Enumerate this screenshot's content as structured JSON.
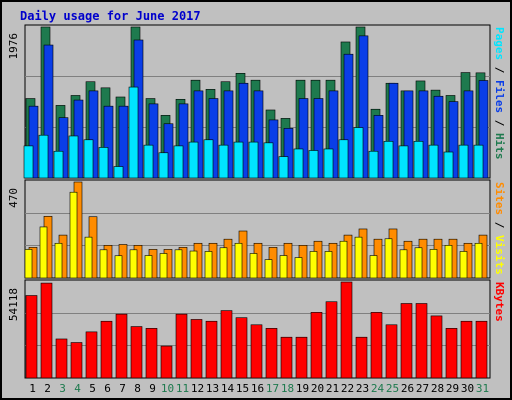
{
  "title": "Daily usage for June 2017",
  "colors": {
    "background": "#c0c0c0",
    "hits": "#1e7a4e",
    "files": "#0a3ee8",
    "pages": "#00e5ff",
    "visits": "#ffff00",
    "sites": "#ff8c00",
    "kbytes": "#ff0000",
    "title": "#0000cc",
    "weekend_label": "#1e7a4e",
    "weekday_label": "#000000"
  },
  "chart_data": [
    {
      "type": "bar",
      "panel": "hits-files-pages",
      "categories": [
        "1",
        "2",
        "3",
        "4",
        "5",
        "6",
        "7",
        "8",
        "9",
        "10",
        "11",
        "12",
        "13",
        "14",
        "15",
        "16",
        "17",
        "18",
        "19",
        "20",
        "21",
        "22",
        "23",
        "24",
        "25",
        "26",
        "27",
        "28",
        "29",
        "30",
        "31"
      ],
      "weekend_days": [
        "3",
        "4",
        "10",
        "11",
        "17",
        "18",
        "24",
        "25",
        "31"
      ],
      "ymax": 1976,
      "ymax_label": "1976",
      "axis_legend": [
        "Pages",
        "/",
        "Files",
        "/",
        "Hits"
      ],
      "series": [
        {
          "name": "Hits",
          "values": [
            1040,
            1976,
            950,
            1080,
            1260,
            1180,
            1060,
            1976,
            1040,
            820,
            1030,
            1280,
            1160,
            1260,
            1370,
            1280,
            890,
            780,
            1280,
            1280,
            1280,
            1780,
            1976,
            900,
            1240,
            1140,
            1270,
            1150,
            1080,
            1380,
            1376
          ]
        },
        {
          "name": "Files",
          "values": [
            940,
            1740,
            790,
            1020,
            1140,
            940,
            940,
            1806,
            970,
            710,
            970,
            1140,
            1040,
            1140,
            1240,
            1140,
            760,
            650,
            1040,
            1040,
            1140,
            1620,
            1860,
            820,
            1240,
            1140,
            1140,
            1070,
            1000,
            1140,
            1276
          ]
        },
        {
          "name": "Pages",
          "values": [
            420,
            560,
            350,
            550,
            500,
            400,
            150,
            1190,
            430,
            330,
            420,
            470,
            500,
            430,
            470,
            470,
            460,
            280,
            380,
            360,
            380,
            500,
            660,
            350,
            480,
            420,
            480,
            430,
            340,
            430,
            430
          ]
        }
      ]
    },
    {
      "type": "bar",
      "panel": "sites-visits",
      "categories": [
        "1",
        "2",
        "3",
        "4",
        "5",
        "6",
        "7",
        "8",
        "9",
        "10",
        "11",
        "12",
        "13",
        "14",
        "15",
        "16",
        "17",
        "18",
        "19",
        "20",
        "21",
        "22",
        "23",
        "24",
        "25",
        "26",
        "27",
        "28",
        "29",
        "30",
        "31"
      ],
      "ymax": 470,
      "ymax_label": "470",
      "axis_legend": [
        "Sites",
        "/",
        "Visits"
      ],
      "series": [
        {
          "name": "Sites",
          "values": [
            150,
            302,
            210,
            470,
            300,
            160,
            164,
            160,
            140,
            140,
            150,
            170,
            170,
            190,
            230,
            170,
            150,
            170,
            160,
            180,
            170,
            210,
            240,
            190,
            240,
            180,
            190,
            190,
            190,
            170,
            210
          ]
        },
        {
          "name": "Visits",
          "values": [
            140,
            250,
            170,
            420,
            200,
            138,
            109,
            138,
            110,
            120,
            138,
            132,
            130,
            148,
            170,
            120,
            90,
            110,
            100,
            130,
            130,
            180,
            200,
            110,
            192,
            138,
            148,
            140,
            160,
            130,
            170
          ]
        }
      ]
    },
    {
      "type": "bar",
      "panel": "kbytes",
      "categories": [
        "1",
        "2",
        "3",
        "4",
        "5",
        "6",
        "7",
        "8",
        "9",
        "10",
        "11",
        "12",
        "13",
        "14",
        "15",
        "16",
        "17",
        "18",
        "19",
        "20",
        "21",
        "22",
        "23",
        "24",
        "25",
        "26",
        "27",
        "28",
        "29",
        "30",
        "31"
      ],
      "ymax": 54118,
      "ymax_label": "54118",
      "axis_legend": [
        "KBytes"
      ],
      "series": [
        {
          "name": "KBytes",
          "values": [
            46500,
            53500,
            22000,
            20000,
            26000,
            32000,
            36000,
            29000,
            28000,
            18000,
            36000,
            33000,
            32000,
            38000,
            34000,
            30000,
            28000,
            23000,
            23000,
            37000,
            43000,
            54118,
            23000,
            37000,
            30000,
            42000,
            42000,
            35000,
            28000,
            32000,
            32000
          ]
        }
      ]
    }
  ]
}
